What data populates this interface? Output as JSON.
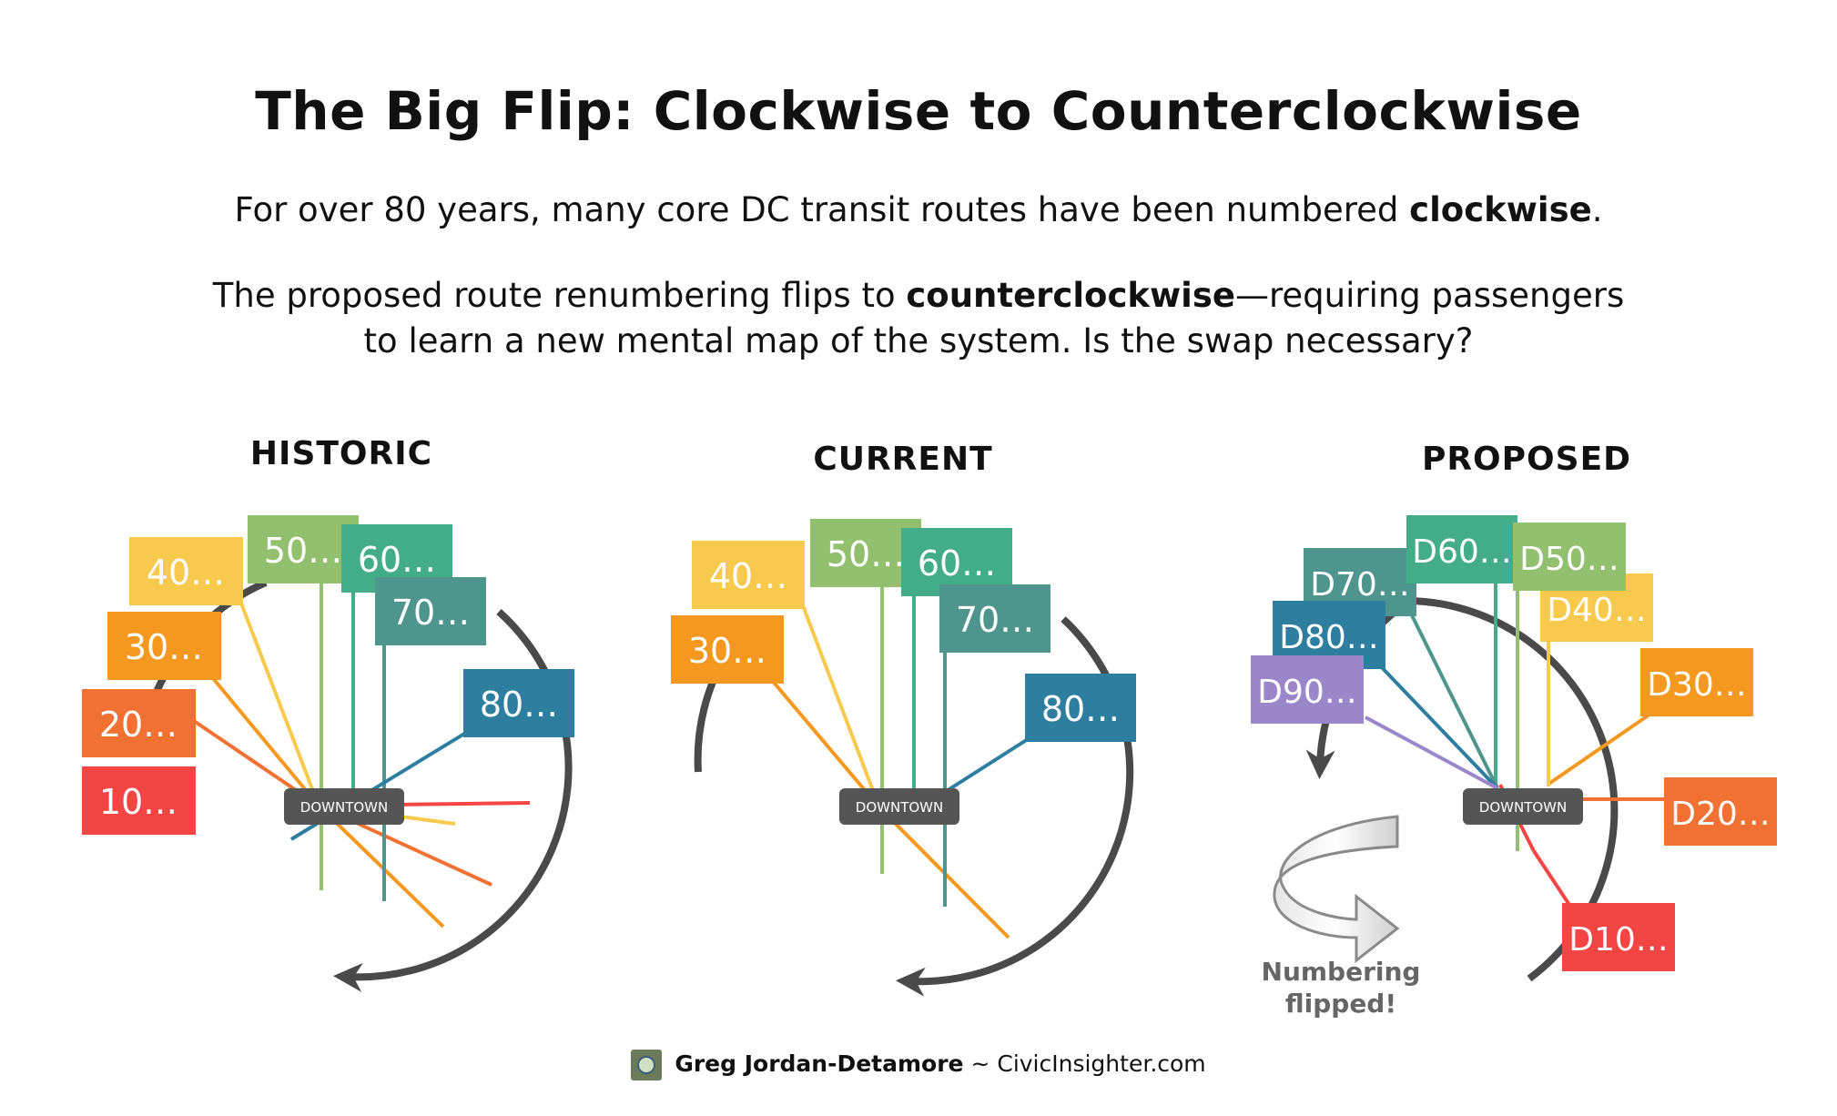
{
  "title": "The Big Flip: Clockwise to Counterclockwise",
  "subtitle1": {
    "pre": "For over 80 years, many core DC transit routes have been numbered ",
    "bold": "clockwise",
    "post": "."
  },
  "subtitle2": {
    "pre": "The proposed route renumbering flips to ",
    "bold": "counterclockwise",
    "post": "—requiring passengers to learn a new mental map of the system. Is the swap necessary?"
  },
  "hub_label": "DOWNTOWN",
  "panels": [
    {
      "id": "historic",
      "heading": "HISTORIC",
      "labels": [
        {
          "text": "10…",
          "color": "#f44545"
        },
        {
          "text": "20…",
          "color": "#f07132"
        },
        {
          "text": "30…",
          "color": "#f5981f"
        },
        {
          "text": "40…",
          "color": "#f7c94d"
        },
        {
          "text": "50…",
          "color": "#93c06f"
        },
        {
          "text": "60…",
          "color": "#43ad8a"
        },
        {
          "text": "70…",
          "color": "#4e958d"
        },
        {
          "text": "80…",
          "color": "#2e7ea0"
        }
      ]
    },
    {
      "id": "current",
      "heading": "CURRENT",
      "labels": [
        {
          "text": "30…",
          "color": "#f5981f"
        },
        {
          "text": "40…",
          "color": "#f7c94d"
        },
        {
          "text": "50…",
          "color": "#93c06f"
        },
        {
          "text": "60…",
          "color": "#43ad8a"
        },
        {
          "text": "70…",
          "color": "#4e958d"
        },
        {
          "text": "80…",
          "color": "#2e7ea0"
        }
      ]
    },
    {
      "id": "proposed",
      "heading": "PROPOSED",
      "labels": [
        {
          "text": "D10…",
          "color": "#f44545"
        },
        {
          "text": "D20…",
          "color": "#f07132"
        },
        {
          "text": "D30…",
          "color": "#f5981f"
        },
        {
          "text": "D40…",
          "color": "#f7c94d"
        },
        {
          "text": "D50…",
          "color": "#93c06f"
        },
        {
          "text": "D60…",
          "color": "#43ad8a"
        },
        {
          "text": "D70…",
          "color": "#4e958d"
        },
        {
          "text": "D80…",
          "color": "#2e7ea0"
        },
        {
          "text": "D90…",
          "color": "#9a86c8"
        }
      ]
    }
  ],
  "flip_note": {
    "line1": "Numbering",
    "line2": "flipped!"
  },
  "footer": {
    "author": "Greg Jordan-Detamore",
    "separator": " ~ ",
    "site": "CivicInsighter.com"
  }
}
